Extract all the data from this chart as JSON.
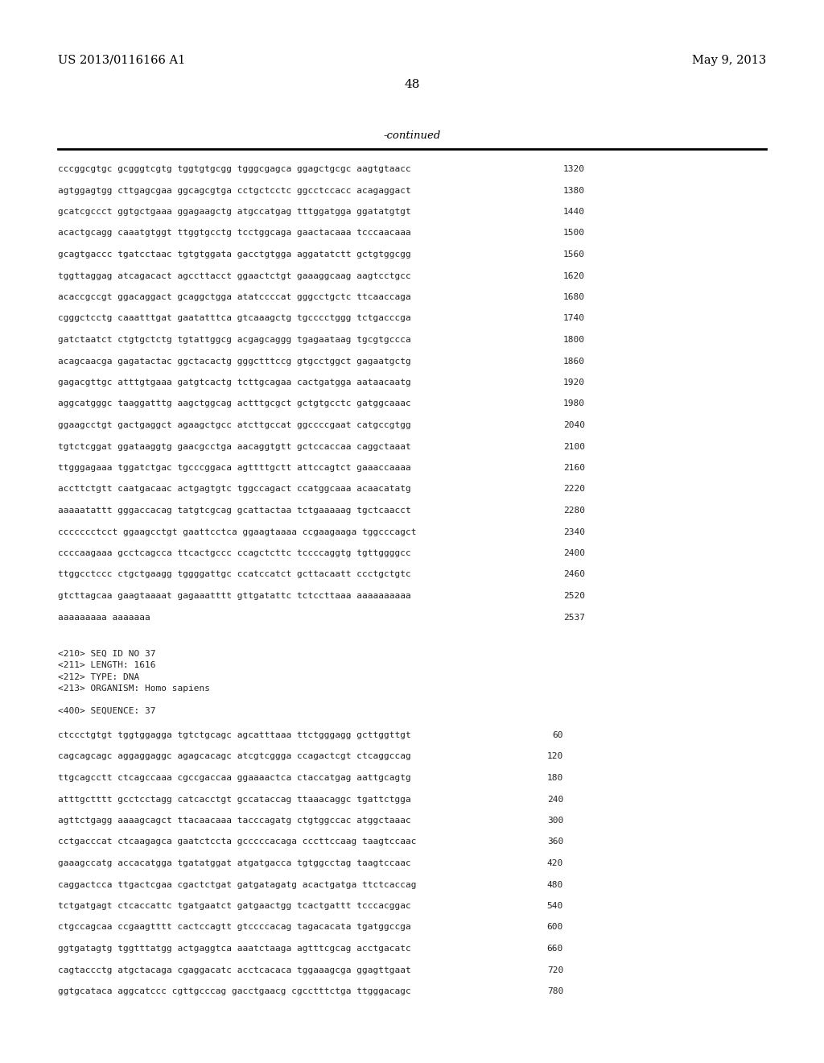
{
  "bg_color": "#ffffff",
  "header_left": "US 2013/0116166 A1",
  "header_right": "May 9, 2013",
  "page_number": "48",
  "continued_label": "-continued",
  "sequence_lines": [
    {
      "text": "cccggcgtgc gcgggtcgtg tggtgtgcgg tgggcgagca ggagctgcgc aagtgtaacc",
      "num": "1320"
    },
    {
      "text": "agtggagtgg cttgagcgaa ggcagcgtga cctgctcctc ggcctccacc acagaggact",
      "num": "1380"
    },
    {
      "text": "gcatcgccct ggtgctgaaa ggagaagctg atgccatgag tttggatgga ggatatgtgt",
      "num": "1440"
    },
    {
      "text": "acactgcagg caaatgtggt ttggtgcctg tcctggcaga gaactacaaa tcccaacaaa",
      "num": "1500"
    },
    {
      "text": "gcagtgaccc tgatcctaac tgtgtggata gacctgtgga aggatatctt gctgtggcgg",
      "num": "1560"
    },
    {
      "text": "tggttaggag atcagacact agccttacct ggaactctgt gaaaggcaag aagtcctgcc",
      "num": "1620"
    },
    {
      "text": "acaccgccgt ggacaggact gcaggctgga atatccccat gggcctgctc ttcaaccaga",
      "num": "1680"
    },
    {
      "text": "cgggctcctg caaatttgat gaatatttca gtcaaagctg tgcccctggg tctgacccga",
      "num": "1740"
    },
    {
      "text": "gatctaatct ctgtgctctg tgtattggcg acgagcaggg tgagaataag tgcgtgccca",
      "num": "1800"
    },
    {
      "text": "acagcaacga gagatactac ggctacactg gggctttccg gtgcctggct gagaatgctg",
      "num": "1860"
    },
    {
      "text": "gagacgttgc atttgtgaaa gatgtcactg tcttgcagaa cactgatgga aataacaatg",
      "num": "1920"
    },
    {
      "text": "aggcatgggc taaggatttg aagctggcag actttgcgct gctgtgcctc gatggcaaac",
      "num": "1980"
    },
    {
      "text": "ggaagcctgt gactgaggct agaagctgcc atcttgccat ggccccgaat catgccgtgg",
      "num": "2040"
    },
    {
      "text": "tgtctcggat ggataaggtg gaacgcctga aacaggtgtt gctccaccaa caggctaaat",
      "num": "2100"
    },
    {
      "text": "ttgggagaaa tggatctgac tgcccggaca agttttgctt attccagtct gaaaccaaaa",
      "num": "2160"
    },
    {
      "text": "accttctgtt caatgacaac actgagtgtc tggccagact ccatggcaaa acaacatatg",
      "num": "2220"
    },
    {
      "text": "aaaaatattt gggaccacag tatgtcgcag gcattactaa tctgaaaaag tgctcaacct",
      "num": "2280"
    },
    {
      "text": "ccccccctcct ggaagcctgt gaattcctca ggaagtaaaa ccgaagaaga tggcccagct",
      "num": "2340"
    },
    {
      "text": "ccccaagaaa gcctcagcca ttcactgccc ccagctcttc tccccaggtg tgttggggcc",
      "num": "2400"
    },
    {
      "text": "ttggcctccc ctgctgaagg tggggattgc ccatccatct gcttacaatt ccctgctgtc",
      "num": "2460"
    },
    {
      "text": "gtcttagcaa gaagtaaaat gagaaatttt gttgatattc tctccttaaa aaaaaaaaaa",
      "num": "2520"
    },
    {
      "text": "aaaaaaaaa aaaaaaa",
      "num": "2537"
    }
  ],
  "meta_lines": [
    "<210> SEQ ID NO 37",
    "<211> LENGTH: 1616",
    "<212> TYPE: DNA",
    "<213> ORGANISM: Homo sapiens"
  ],
  "seq400_label": "<400> SEQUENCE: 37",
  "seq_lines_2": [
    {
      "text": "ctccctgtgt tggtggagga tgtctgcagc agcatttaaa ttctgggagg gcttggttgt",
      "num": "60"
    },
    {
      "text": "cagcagcagc aggaggaggc agagcacagc atcgtcggga ccagactcgt ctcaggccag",
      "num": "120"
    },
    {
      "text": "ttgcagcctt ctcagccaaa cgccgaccaa ggaaaactca ctaccatgag aattgcagtg",
      "num": "180"
    },
    {
      "text": "atttgctttt gcctcctagg catcacctgt gccataccag ttaaacaggc tgattctgga",
      "num": "240"
    },
    {
      "text": "agttctgagg aaaagcagct ttacaacaaa tacccagatg ctgtggccac atggctaaac",
      "num": "300"
    },
    {
      "text": "cctgacccat ctcaagagca gaatctccta gcccccacaga cccttccaag taagtccaac",
      "num": "360"
    },
    {
      "text": "gaaagccatg accacatgga tgatatggat atgatgacca tgtggcctag taagtccaac",
      "num": "420"
    },
    {
      "text": "caggactcca ttgactcgaa cgactctgat gatgatagatg acactgatga ttctcaccag",
      "num": "480"
    },
    {
      "text": "tctgatgagt ctcaccattc tgatgaatct gatgaactgg tcactgattt tcccacggac",
      "num": "540"
    },
    {
      "text": "ctgccagcaa ccgaagtttt cactccagtt gtccccacag tagacacata tgatggccga",
      "num": "600"
    },
    {
      "text": "ggtgatagtg tggtttatgg actgaggtca aaatctaaga agtttcgcag acctgacatc",
      "num": "660"
    },
    {
      "text": "cagtaccctg atgctacaga cgaggacatc acctcacaca tggaaagcga ggagttgaat",
      "num": "720"
    },
    {
      "text": "ggtgcataca aggcatccc cgttgcccag gacctgaacg cgcctttctga ttgggacagc",
      "num": "780"
    }
  ]
}
